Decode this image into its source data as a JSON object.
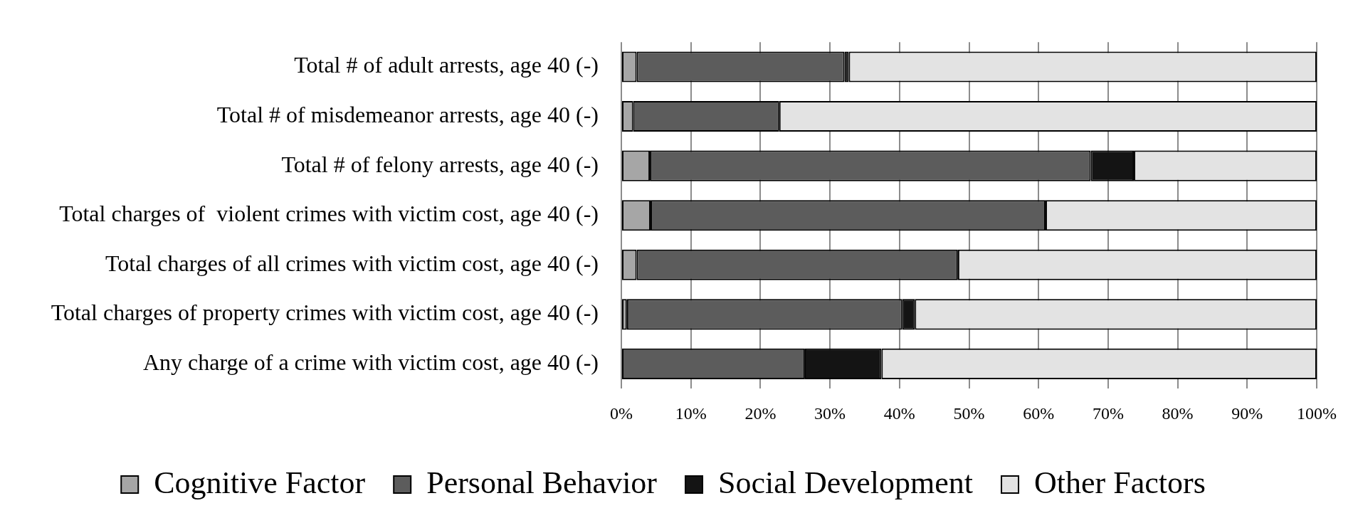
{
  "chart_data": {
    "type": "bar",
    "orientation": "horizontal",
    "stacked": true,
    "categories": [
      "Total # of adult arrests, age 40 (-)",
      "Total # of misdemeanor arrests, age 40 (-)",
      "Total # of felony arrests, age 40 (-)",
      "Total charges of  violent crimes with victim cost, age 40 (-)",
      "Total charges of all crimes with victim cost, age 40 (-)",
      "Total charges of property crimes with victim cost, age 40 (-)",
      "Any charge of a crime with victim cost, age 40 (-)"
    ],
    "series": [
      {
        "name": "Cognitive Factor",
        "color": "#a6a6a6",
        "values": [
          2.2,
          1.7,
          4.1,
          4.2,
          2.2,
          0.8,
          0
        ]
      },
      {
        "name": "Personal Behavior",
        "color": "#5c5c5c",
        "values": [
          29.9,
          21.0,
          63.4,
          56.8,
          46.2,
          39.6,
          26.4
        ]
      },
      {
        "name": "Social Development",
        "color": "#141414",
        "values": [
          0.6,
          0,
          6.2,
          0,
          0,
          1.8,
          11.0
        ]
      },
      {
        "name": "Other Factors",
        "color": "#e3e3e3",
        "values": [
          67.3,
          77.3,
          26.3,
          39.0,
          51.6,
          57.8,
          62.6
        ]
      }
    ],
    "xlim": [
      0,
      100
    ],
    "xticks": [
      {
        "value": 0,
        "label": "0%"
      },
      {
        "value": 10,
        "label": "10%"
      },
      {
        "value": 20,
        "label": "20%"
      },
      {
        "value": 30,
        "label": "30%"
      },
      {
        "value": 40,
        "label": "40%"
      },
      {
        "value": 50,
        "label": "50%"
      },
      {
        "value": 60,
        "label": "60%"
      },
      {
        "value": 70,
        "label": "70%"
      },
      {
        "value": 80,
        "label": "80%"
      },
      {
        "value": 90,
        "label": "90%"
      },
      {
        "value": 100,
        "label": "100%"
      }
    ],
    "grid": "x",
    "legend": "bottom"
  }
}
